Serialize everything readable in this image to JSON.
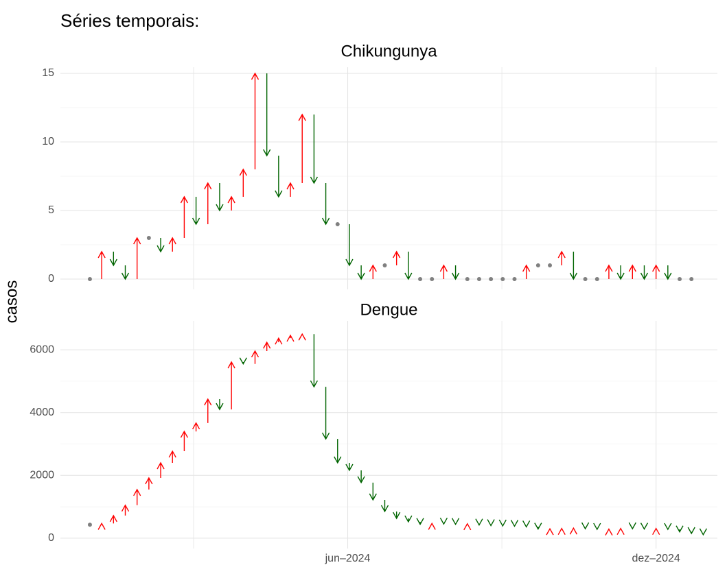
{
  "title": "Séries temporais:",
  "ylabel": "casos",
  "shared_x": {
    "xlim": [
      -1.5,
      54.2
    ],
    "xticks": [
      {
        "value": 22.86,
        "label": "jun–2024"
      },
      {
        "value": 49.0,
        "label": "dez–2024"
      }
    ],
    "minor_grid": true
  },
  "chart_data": [
    {
      "type": "arrow",
      "title": "Chikungunya",
      "x": [
        1,
        2,
        3,
        4,
        5,
        6,
        7,
        8,
        9,
        10,
        11,
        12,
        13,
        14,
        15,
        16,
        17,
        18,
        19,
        20,
        21,
        22,
        23,
        24,
        25,
        26,
        27,
        28,
        29,
        30,
        31,
        32,
        33,
        34,
        35,
        36,
        37,
        38,
        39,
        40,
        41,
        42,
        43,
        44,
        45,
        46,
        47,
        48,
        49,
        50,
        51,
        52
      ],
      "values": [
        0,
        2,
        1,
        0,
        3,
        3,
        2,
        3,
        6,
        4,
        7,
        5,
        6,
        8,
        15,
        9,
        6,
        7,
        12,
        7,
        4,
        4,
        1,
        0,
        1,
        1,
        2,
        0,
        0,
        0,
        1,
        0,
        0,
        0,
        0,
        0,
        0,
        1,
        1,
        1,
        2,
        0,
        0,
        0,
        1,
        0,
        1,
        0,
        1,
        0,
        0,
        0
      ],
      "ylim": [
        -0.75,
        15.45
      ],
      "yticks": [
        0,
        5,
        10,
        15
      ],
      "grid": true,
      "minor_grid": true,
      "up_color": "#ff0000",
      "down_color": "#006400",
      "flat_color": "#808080"
    },
    {
      "type": "arrow",
      "title": "Dengue",
      "x": [
        1,
        2,
        3,
        4,
        5,
        6,
        7,
        8,
        9,
        10,
        11,
        12,
        13,
        14,
        15,
        16,
        17,
        18,
        19,
        20,
        21,
        22,
        23,
        24,
        25,
        26,
        27,
        28,
        29,
        30,
        31,
        32,
        33,
        34,
        35,
        36,
        37,
        38,
        39,
        40,
        41,
        42,
        43,
        44,
        45,
        46,
        47,
        48,
        49,
        50,
        51,
        52,
        53
      ],
      "values": [
        430,
        470,
        720,
        1050,
        1550,
        1920,
        2400,
        2770,
        3400,
        3670,
        4430,
        4100,
        5610,
        5550,
        5960,
        6240,
        6370,
        6460,
        6500,
        4820,
        3160,
        2400,
        2160,
        1770,
        1220,
        850,
        630,
        520,
        440,
        470,
        450,
        440,
        460,
        420,
        400,
        390,
        380,
        360,
        290,
        300,
        310,
        320,
        300,
        280,
        290,
        310,
        300,
        290,
        310,
        280,
        200,
        150,
        110
      ],
      "ylim": [
        -330,
        6920
      ],
      "yticks": [
        0,
        2000,
        4000,
        6000
      ],
      "grid": true,
      "minor_grid": true,
      "up_color": "#ff0000",
      "down_color": "#006400",
      "flat_color": "#808080"
    }
  ]
}
